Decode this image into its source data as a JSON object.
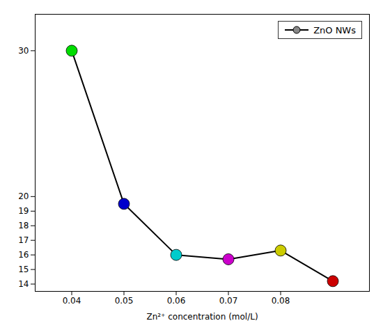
{
  "chart_data": {
    "type": "line",
    "x": [
      0.04,
      0.05,
      0.06,
      0.07,
      0.08,
      0.09
    ],
    "series": [
      {
        "name": "ZnO NWs",
        "color": "#000000",
        "colors": [
          "#00dd00",
          "#0000cc",
          "#00cccc",
          "#cc00cc",
          "#cccc00",
          "#cc0000"
        ],
        "values": [
          30.0,
          19.5,
          16.0,
          15.7,
          16.3,
          14.2
        ]
      }
    ],
    "xlabel": "Zn²⁺ concentration (mol/L)",
    "xlim": [
      0.033,
      0.097
    ],
    "ylim": [
      13.5,
      32.5
    ],
    "xticks": [
      0.04,
      0.05,
      0.06,
      0.07,
      0.08
    ],
    "yticks": [
      14,
      15,
      16,
      17,
      18,
      19,
      20,
      30
    ],
    "legend": "upper right"
  }
}
